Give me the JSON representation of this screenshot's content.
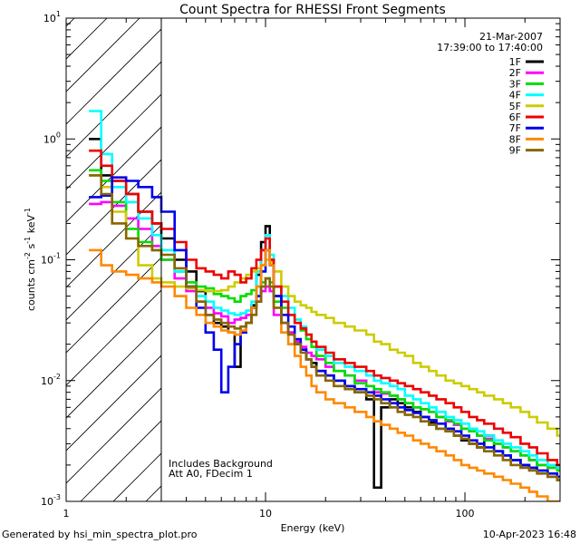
{
  "footer": {
    "generated": "Generated by hsi_min_spectra_plot.pro",
    "timestamp": "10-Apr-2023 16:48"
  },
  "chart_data": {
    "type": "line",
    "step": true,
    "title": "Count Spectra for RHESSI Front Segments",
    "xlabel": "Energy (keV)",
    "ylabel_base": "counts cm",
    "ylabel_sup1": "-2",
    "ylabel_mid1": " s",
    "ylabel_sup2": "-1",
    "ylabel_mid2": " keV",
    "ylabel_sup3": "-1",
    "xscale": "log",
    "yscale": "log",
    "xlim": [
      1,
      300
    ],
    "ylim": [
      0.001,
      10
    ],
    "x_ticks": [
      {
        "value": 1,
        "label": "1"
      },
      {
        "value": 10,
        "label": "10"
      },
      {
        "value": 100,
        "label": "100"
      }
    ],
    "y_ticks": [
      {
        "value": 0.001,
        "base": "10",
        "exp": "-3"
      },
      {
        "value": 0.01,
        "base": "10",
        "exp": "-2"
      },
      {
        "value": 0.1,
        "base": "10",
        "exp": "-1"
      },
      {
        "value": 1,
        "base": "10",
        "exp": "0"
      },
      {
        "value": 10,
        "base": "10",
        "exp": "1"
      }
    ],
    "date": "21-Mar-2007",
    "time_range": "17:39:00 to 17:40:00",
    "notes": [
      "Includes Background",
      "Att A0, FDecim 1"
    ],
    "hatched_region": [
      1,
      3
    ],
    "legend_position": "top-right",
    "series": [
      {
        "name": "1F",
        "color": "#000000",
        "x": [
          1.3,
          1.5,
          1.7,
          2.0,
          2.3,
          2.7,
          3.0,
          3.5,
          4.0,
          4.5,
          5.0,
          5.5,
          6.0,
          6.5,
          7.0,
          7.5,
          8.0,
          8.5,
          9.0,
          9.5,
          10.0,
          10.5,
          11.0,
          12,
          13,
          14,
          15,
          16,
          17,
          18,
          20,
          22,
          25,
          28,
          32,
          35,
          38,
          42,
          46,
          50,
          55,
          60,
          66,
          72,
          80,
          88,
          96,
          105,
          115,
          125,
          140,
          155,
          170,
          190,
          210,
          230,
          260,
          290
        ],
        "y": [
          1.0,
          0.5,
          0.45,
          0.35,
          0.25,
          0.2,
          0.15,
          0.1,
          0.08,
          0.055,
          0.035,
          0.03,
          0.028,
          0.025,
          0.013,
          0.025,
          0.03,
          0.042,
          0.075,
          0.14,
          0.19,
          0.1,
          0.05,
          0.03,
          0.025,
          0.02,
          0.018,
          0.015,
          0.014,
          0.012,
          0.011,
          0.01,
          0.009,
          0.008,
          0.007,
          0.0013,
          0.006,
          0.007,
          0.0065,
          0.006,
          0.0055,
          0.005,
          0.0045,
          0.004,
          0.0038,
          0.0035,
          0.0032,
          0.003,
          0.0028,
          0.0035,
          0.0026,
          0.0024,
          0.0022,
          0.002,
          0.0019,
          0.0018,
          0.0016,
          0.0015
        ]
      },
      {
        "name": "2F",
        "color": "#ff00ff",
        "x": [
          1.3,
          1.5,
          1.7,
          2.0,
          2.3,
          2.7,
          3.0,
          3.5,
          4.0,
          4.5,
          5.0,
          5.5,
          6.0,
          6.5,
          7.0,
          7.5,
          8.0,
          8.5,
          9.0,
          9.5,
          10.0,
          10.5,
          11.0,
          12,
          13,
          14,
          15,
          16,
          17,
          18,
          20,
          22,
          25,
          28,
          32,
          35,
          38,
          42,
          46,
          50,
          55,
          60,
          66,
          72,
          80,
          88,
          96,
          105,
          115,
          125,
          140,
          155,
          170,
          190,
          210,
          230,
          260,
          290
        ],
        "y": [
          0.29,
          0.3,
          0.28,
          0.22,
          0.18,
          0.13,
          0.1,
          0.07,
          0.055,
          0.045,
          0.04,
          0.036,
          0.034,
          0.03,
          0.032,
          0.033,
          0.035,
          0.04,
          0.045,
          0.055,
          0.06,
          0.055,
          0.035,
          0.03,
          0.025,
          0.021,
          0.019,
          0.017,
          0.016,
          0.015,
          0.013,
          0.012,
          0.011,
          0.01,
          0.009,
          0.008,
          0.0078,
          0.0075,
          0.007,
          0.0065,
          0.006,
          0.0058,
          0.0055,
          0.005,
          0.0046,
          0.0043,
          0.004,
          0.0038,
          0.0035,
          0.0033,
          0.003,
          0.0028,
          0.0026,
          0.0024,
          0.0022,
          0.002,
          0.0019,
          0.0018
        ]
      },
      {
        "name": "3F",
        "color": "#00dd00",
        "x": [
          1.3,
          1.5,
          1.7,
          2.0,
          2.3,
          2.7,
          3.0,
          3.5,
          4.0,
          4.5,
          5.0,
          5.5,
          6.0,
          6.5,
          7.0,
          7.5,
          8.0,
          8.5,
          9.0,
          9.5,
          10.0,
          10.5,
          11.0,
          12,
          13,
          14,
          15,
          16,
          17,
          18,
          20,
          22,
          25,
          28,
          32,
          35,
          38,
          42,
          46,
          50,
          55,
          60,
          66,
          72,
          80,
          88,
          96,
          105,
          115,
          125,
          140,
          155,
          170,
          190,
          210,
          230,
          260,
          290
        ],
        "y": [
          0.55,
          0.45,
          0.3,
          0.18,
          0.14,
          0.12,
          0.1,
          0.08,
          0.065,
          0.06,
          0.058,
          0.052,
          0.05,
          0.048,
          0.045,
          0.05,
          0.052,
          0.056,
          0.06,
          0.065,
          0.07,
          0.065,
          0.045,
          0.04,
          0.035,
          0.03,
          0.026,
          0.022,
          0.019,
          0.016,
          0.014,
          0.012,
          0.011,
          0.0095,
          0.009,
          0.0085,
          0.008,
          0.0075,
          0.007,
          0.0065,
          0.006,
          0.0058,
          0.0055,
          0.005,
          0.0047,
          0.0044,
          0.004,
          0.0038,
          0.0035,
          0.0032,
          0.003,
          0.0028,
          0.0026,
          0.0024,
          0.0022,
          0.002,
          0.0019,
          0.0018
        ]
      },
      {
        "name": "4F",
        "color": "#00ffff",
        "x": [
          1.3,
          1.5,
          1.7,
          2.0,
          2.3,
          2.7,
          3.0,
          3.5,
          4.0,
          4.5,
          5.0,
          5.5,
          6.0,
          6.5,
          7.0,
          7.5,
          8.0,
          8.5,
          9.0,
          9.5,
          10.0,
          10.5,
          11.0,
          12,
          13,
          14,
          15,
          16,
          17,
          18,
          20,
          22,
          25,
          28,
          32,
          35,
          38,
          42,
          46,
          50,
          55,
          60,
          66,
          72,
          80,
          88,
          96,
          105,
          115,
          125,
          140,
          155,
          170,
          190,
          210,
          230,
          260,
          290
        ],
        "y": [
          1.7,
          0.75,
          0.4,
          0.3,
          0.22,
          0.16,
          0.12,
          0.08,
          0.06,
          0.05,
          0.045,
          0.04,
          0.038,
          0.036,
          0.035,
          0.036,
          0.038,
          0.045,
          0.08,
          0.12,
          0.16,
          0.11,
          0.06,
          0.05,
          0.04,
          0.032,
          0.028,
          0.024,
          0.021,
          0.018,
          0.016,
          0.014,
          0.013,
          0.012,
          0.011,
          0.01,
          0.0095,
          0.009,
          0.0085,
          0.0075,
          0.007,
          0.0065,
          0.006,
          0.0055,
          0.005,
          0.0047,
          0.0044,
          0.004,
          0.0038,
          0.0035,
          0.0032,
          0.003,
          0.0028,
          0.0026,
          0.0024,
          0.0022,
          0.002,
          0.0019
        ]
      },
      {
        "name": "5F",
        "color": "#cccc00",
        "x": [
          1.3,
          1.5,
          1.7,
          2.0,
          2.3,
          2.7,
          3.0,
          3.5,
          4.0,
          4.5,
          5.0,
          5.5,
          6.0,
          6.5,
          7.0,
          7.5,
          8.0,
          8.5,
          9.0,
          9.5,
          10.0,
          10.5,
          11.0,
          12,
          13,
          14,
          15,
          16,
          17,
          18,
          20,
          22,
          25,
          28,
          32,
          35,
          38,
          42,
          46,
          50,
          55,
          60,
          66,
          72,
          80,
          88,
          96,
          105,
          115,
          125,
          140,
          155,
          170,
          190,
          210,
          230,
          260,
          290
        ],
        "y": [
          0.5,
          0.4,
          0.25,
          0.15,
          0.09,
          0.07,
          0.065,
          0.06,
          0.058,
          0.056,
          0.055,
          0.055,
          0.056,
          0.06,
          0.065,
          0.07,
          0.075,
          0.08,
          0.085,
          0.09,
          0.1,
          0.095,
          0.08,
          0.06,
          0.05,
          0.045,
          0.042,
          0.04,
          0.037,
          0.035,
          0.033,
          0.03,
          0.028,
          0.026,
          0.024,
          0.021,
          0.02,
          0.018,
          0.017,
          0.016,
          0.014,
          0.013,
          0.012,
          0.011,
          0.01,
          0.0095,
          0.009,
          0.0085,
          0.008,
          0.0075,
          0.007,
          0.0065,
          0.006,
          0.0055,
          0.005,
          0.0045,
          0.004,
          0.0035
        ]
      },
      {
        "name": "6F",
        "color": "#ee0000",
        "x": [
          1.3,
          1.5,
          1.7,
          2.0,
          2.3,
          2.7,
          3.0,
          3.5,
          4.0,
          4.5,
          5.0,
          5.5,
          6.0,
          6.5,
          7.0,
          7.5,
          8.0,
          8.5,
          9.0,
          9.5,
          10.0,
          10.5,
          11.0,
          12,
          13,
          14,
          15,
          16,
          17,
          18,
          20,
          22,
          25,
          28,
          32,
          35,
          38,
          42,
          46,
          50,
          55,
          60,
          66,
          72,
          80,
          88,
          96,
          105,
          115,
          125,
          140,
          155,
          170,
          190,
          210,
          230,
          260,
          290
        ],
        "y": [
          0.8,
          0.6,
          0.45,
          0.35,
          0.25,
          0.2,
          0.18,
          0.14,
          0.1,
          0.085,
          0.08,
          0.075,
          0.07,
          0.08,
          0.075,
          0.065,
          0.07,
          0.085,
          0.1,
          0.12,
          0.15,
          0.1,
          0.06,
          0.045,
          0.035,
          0.03,
          0.027,
          0.024,
          0.021,
          0.019,
          0.017,
          0.015,
          0.014,
          0.013,
          0.012,
          0.011,
          0.0105,
          0.01,
          0.0095,
          0.009,
          0.0085,
          0.008,
          0.0075,
          0.007,
          0.0065,
          0.006,
          0.0055,
          0.005,
          0.0047,
          0.0044,
          0.004,
          0.0037,
          0.0034,
          0.003,
          0.0028,
          0.0025,
          0.0022,
          0.002
        ]
      },
      {
        "name": "7F",
        "color": "#0000ee",
        "x": [
          1.3,
          1.5,
          1.7,
          2.0,
          2.3,
          2.7,
          3.0,
          3.5,
          4.0,
          4.5,
          5.0,
          5.5,
          6.0,
          6.5,
          7.0,
          7.5,
          8.0,
          8.5,
          9.0,
          9.5,
          10.0,
          10.5,
          11.0,
          12,
          13,
          14,
          15,
          16,
          17,
          18,
          20,
          22,
          25,
          28,
          32,
          35,
          38,
          42,
          46,
          50,
          55,
          60,
          66,
          72,
          80,
          88,
          96,
          105,
          115,
          125,
          140,
          155,
          170,
          190,
          210,
          230,
          260,
          290
        ],
        "y": [
          0.33,
          0.34,
          0.48,
          0.45,
          0.4,
          0.33,
          0.25,
          0.12,
          0.06,
          0.04,
          0.025,
          0.018,
          0.008,
          0.013,
          0.02,
          0.025,
          0.03,
          0.04,
          0.05,
          0.08,
          0.12,
          0.09,
          0.05,
          0.035,
          0.028,
          0.022,
          0.018,
          0.015,
          0.013,
          0.012,
          0.011,
          0.01,
          0.009,
          0.0085,
          0.008,
          0.0075,
          0.007,
          0.0065,
          0.006,
          0.0057,
          0.0054,
          0.005,
          0.0047,
          0.0044,
          0.004,
          0.0038,
          0.0035,
          0.0032,
          0.003,
          0.0028,
          0.0026,
          0.0024,
          0.0022,
          0.002,
          0.0019,
          0.0018,
          0.0017,
          0.0016
        ]
      },
      {
        "name": "8F",
        "color": "#ff8800",
        "x": [
          1.3,
          1.5,
          1.7,
          2.0,
          2.3,
          2.7,
          3.0,
          3.5,
          4.0,
          4.5,
          5.0,
          5.5,
          6.0,
          6.5,
          7.0,
          7.5,
          8.0,
          8.5,
          9.0,
          9.5,
          10.0,
          10.5,
          11.0,
          12,
          13,
          14,
          15,
          16,
          17,
          18,
          20,
          22,
          25,
          28,
          32,
          35,
          38,
          42,
          46,
          50,
          55,
          60,
          66,
          72,
          80,
          88,
          96,
          105,
          115,
          125,
          140,
          155,
          170,
          190,
          210,
          230,
          260,
          290
        ],
        "y": [
          0.12,
          0.09,
          0.08,
          0.075,
          0.07,
          0.065,
          0.06,
          0.05,
          0.04,
          0.035,
          0.03,
          0.028,
          0.026,
          0.025,
          0.024,
          0.026,
          0.03,
          0.04,
          0.06,
          0.09,
          0.12,
          0.09,
          0.04,
          0.025,
          0.02,
          0.016,
          0.013,
          0.011,
          0.009,
          0.008,
          0.007,
          0.0065,
          0.006,
          0.0055,
          0.005,
          0.0046,
          0.0043,
          0.004,
          0.0037,
          0.0035,
          0.0032,
          0.003,
          0.0028,
          0.0026,
          0.0024,
          0.0022,
          0.002,
          0.0019,
          0.0018,
          0.0017,
          0.0016,
          0.0015,
          0.0014,
          0.0013,
          0.0012,
          0.0011,
          0.001,
          0.001
        ]
      },
      {
        "name": "9F",
        "color": "#886600",
        "x": [
          1.3,
          1.5,
          1.7,
          2.0,
          2.3,
          2.7,
          3.0,
          3.5,
          4.0,
          4.5,
          5.0,
          5.5,
          6.0,
          6.5,
          7.0,
          7.5,
          8.0,
          8.5,
          9.0,
          9.5,
          10.0,
          10.5,
          11.0,
          12,
          13,
          14,
          15,
          16,
          17,
          18,
          20,
          22,
          25,
          28,
          32,
          35,
          38,
          42,
          46,
          50,
          55,
          60,
          66,
          72,
          80,
          88,
          96,
          105,
          115,
          125,
          140,
          155,
          170,
          190,
          210,
          230,
          260,
          290
        ],
        "y": [
          0.5,
          0.35,
          0.2,
          0.15,
          0.13,
          0.12,
          0.11,
          0.085,
          0.06,
          0.045,
          0.035,
          0.032,
          0.03,
          0.028,
          0.027,
          0.028,
          0.03,
          0.035,
          0.045,
          0.06,
          0.07,
          0.06,
          0.04,
          0.03,
          0.024,
          0.02,
          0.017,
          0.015,
          0.013,
          0.011,
          0.01,
          0.009,
          0.0085,
          0.008,
          0.0075,
          0.007,
          0.0065,
          0.006,
          0.0055,
          0.0052,
          0.005,
          0.0046,
          0.0043,
          0.004,
          0.0038,
          0.0035,
          0.0033,
          0.003,
          0.0028,
          0.0026,
          0.0024,
          0.0022,
          0.002,
          0.0019,
          0.0018,
          0.0017,
          0.0016,
          0.0015
        ]
      }
    ]
  }
}
